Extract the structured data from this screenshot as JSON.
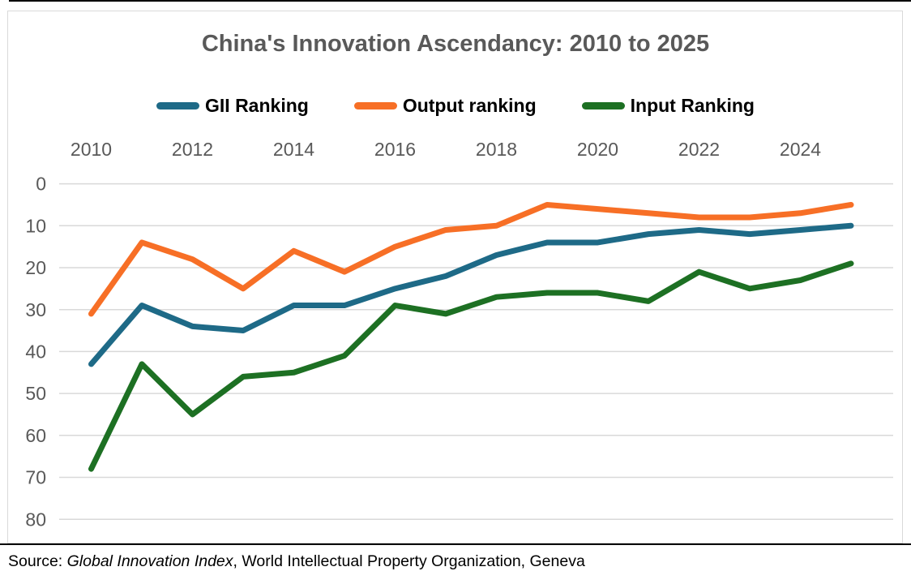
{
  "title": "China's Innovation Ascendancy: 2010 to 2025",
  "source": {
    "prefix": "Source: ",
    "italic": "Global Innovation Index",
    "suffix": ", World Intellectual Property Organization, Geneva"
  },
  "chart_data": {
    "type": "line",
    "title": "China's Innovation Ascendancy: 2010 to 2025",
    "x": [
      2010,
      2011,
      2012,
      2013,
      2014,
      2015,
      2016,
      2017,
      2018,
      2019,
      2020,
      2021,
      2022,
      2023,
      2024,
      2025
    ],
    "x_tick_years": [
      2010,
      2012,
      2014,
      2016,
      2018,
      2020,
      2022,
      2024
    ],
    "y_axis": {
      "min": 0,
      "max": 80,
      "step": 10,
      "inverted": true,
      "ticks": [
        0,
        10,
        20,
        30,
        40,
        50,
        60,
        70,
        80
      ]
    },
    "grid": "horizontal",
    "legend_position": "top",
    "series": [
      {
        "name": "GII Ranking",
        "color": "#1e6a87",
        "values": [
          43,
          29,
          34,
          35,
          29,
          29,
          25,
          22,
          17,
          14,
          14,
          12,
          11,
          12,
          11,
          10
        ]
      },
      {
        "name": "Output ranking",
        "color": "#f76f26",
        "values": [
          31,
          14,
          18,
          25,
          16,
          21,
          15,
          11,
          10,
          5,
          6,
          7,
          8,
          8,
          7,
          5
        ]
      },
      {
        "name": "Input Ranking",
        "color": "#1d7023",
        "values": [
          68,
          43,
          55,
          46,
          45,
          41,
          29,
          31,
          27,
          26,
          26,
          28,
          21,
          25,
          23,
          19
        ]
      }
    ],
    "colors": {
      "grid": "#d9d9d9",
      "axis_labels": "#595959",
      "title": "#595959"
    }
  }
}
